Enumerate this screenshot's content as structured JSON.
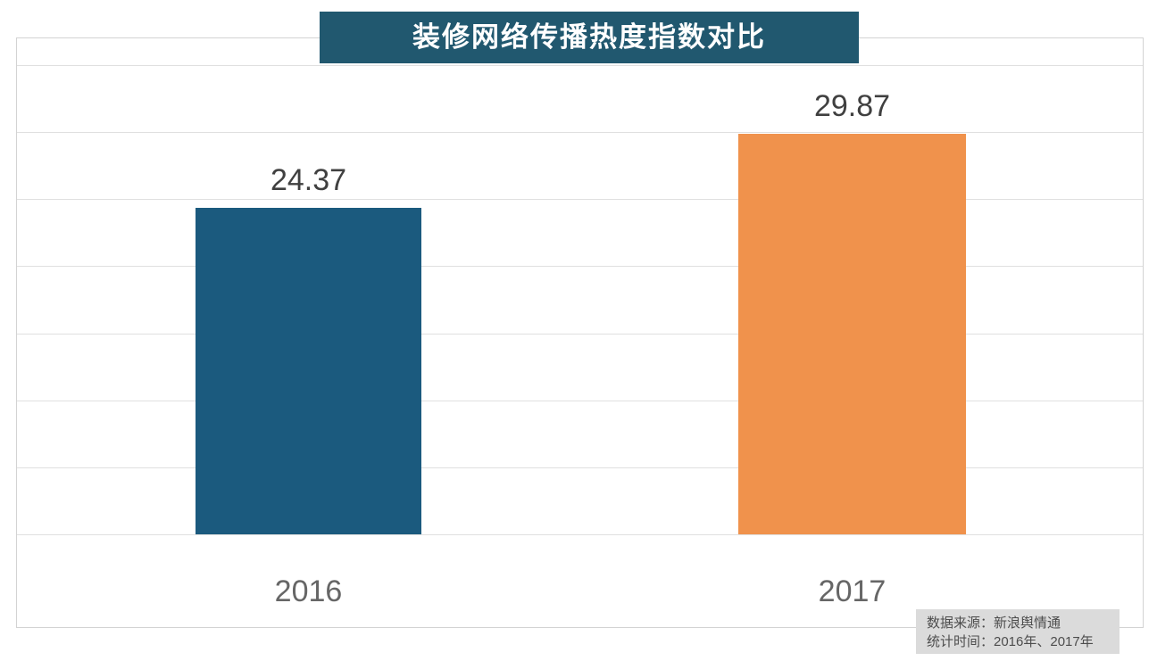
{
  "title": "装修网络传播热度指数对比",
  "chart_data": {
    "type": "bar",
    "title": "装修网络传播热度指数对比",
    "categories": [
      "2016",
      "2017"
    ],
    "values": [
      24.37,
      29.87
    ],
    "value_labels": [
      "24.37",
      "29.87"
    ],
    "bar_colors": [
      "#1b5a7e",
      "#f0924c"
    ],
    "xlabel": "",
    "ylabel": "",
    "ylim": [
      0,
      35
    ],
    "gridline_step": 5,
    "grid": true,
    "legend": "none",
    "y_axis_labels_shown": false
  },
  "source_note": {
    "line1": "数据来源：新浪舆情通",
    "line2": "统计时间：2016年、2017年"
  },
  "colors": {
    "title_bg": "#21586f",
    "title_text": "#ffffff",
    "bar_2016": "#1b5a7e",
    "bar_2017": "#f0924c",
    "gridline": "#e0e0e0",
    "plot_border": "#d3d3d3",
    "value_label_text": "#404040",
    "axis_label_text": "#666666",
    "source_bg": "#dbdbdb",
    "source_text": "#4d4d4d"
  }
}
